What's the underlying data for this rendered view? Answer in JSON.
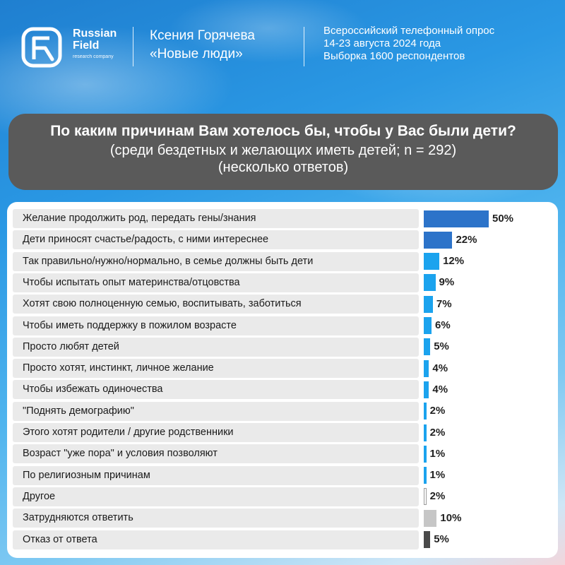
{
  "header": {
    "logo": {
      "line1": "Russian",
      "line2": "Field",
      "line3": "research company"
    },
    "author": {
      "name": "Ксения Горячева",
      "party": "«Новые люди»"
    },
    "survey": {
      "line1": "Всероссийский телефонный опрос",
      "line2": "14-23 августа 2024 года",
      "line3": "Выборка 1600 респондентов"
    }
  },
  "title": {
    "question": "По каким причинам Вам хотелось бы, чтобы у Вас были дети?",
    "subtitle1": "(среди бездетных и желающих иметь детей; n = 292)",
    "subtitle2": "(несколько ответов)"
  },
  "colors": {
    "dark_blue": "#2c73c9",
    "light_blue": "#1ba3ee",
    "other_outline": "#9a9a9a",
    "gray": "#c6c6c6",
    "dark_gray": "#4a4a4a",
    "row_bg": "#eaeaea"
  },
  "chart_data": {
    "type": "bar",
    "orientation": "horizontal",
    "unit": "%",
    "categories": [
      "Желание продолжить род, передать гены/знания",
      "Дети приносят счастье/радость, с ними интереснее",
      "Так правильно/нужно/нормально, в семье должны быть дети",
      "Чтобы испытать опыт материнства/отцовства",
      "Хотят свою полноценную семью, воспитывать, заботиться",
      "Чтобы иметь поддержку в пожилом возрасте",
      "Просто любят детей",
      "Просто хотят, инстинкт, личное желание",
      "Чтобы избежать одиночества",
      "\"Поднять демографию\"",
      "Этого хотят родители / другие родственники",
      "Возраст \"уже пора\" и условия позволяют",
      "По религиозным причинам",
      "Другое",
      "Затрудняются ответить",
      "Отказ от ответа"
    ],
    "values": [
      50,
      22,
      12,
      9,
      7,
      6,
      5,
      4,
      4,
      2,
      2,
      1,
      1,
      2,
      10,
      5
    ],
    "labels": [
      "50%",
      "22%",
      "12%",
      "9%",
      "7%",
      "6%",
      "5%",
      "4%",
      "4%",
      "2%",
      "2%",
      "1%",
      "1%",
      "2%",
      "10%",
      "5%"
    ],
    "bar_styles": [
      "dark_blue",
      "dark_blue",
      "light_blue",
      "light_blue",
      "light_blue",
      "light_blue",
      "light_blue",
      "light_blue",
      "light_blue",
      "light_blue",
      "light_blue",
      "light_blue",
      "light_blue",
      "other_outline",
      "gray",
      "dark_gray"
    ],
    "xlim": [
      0,
      50
    ]
  }
}
